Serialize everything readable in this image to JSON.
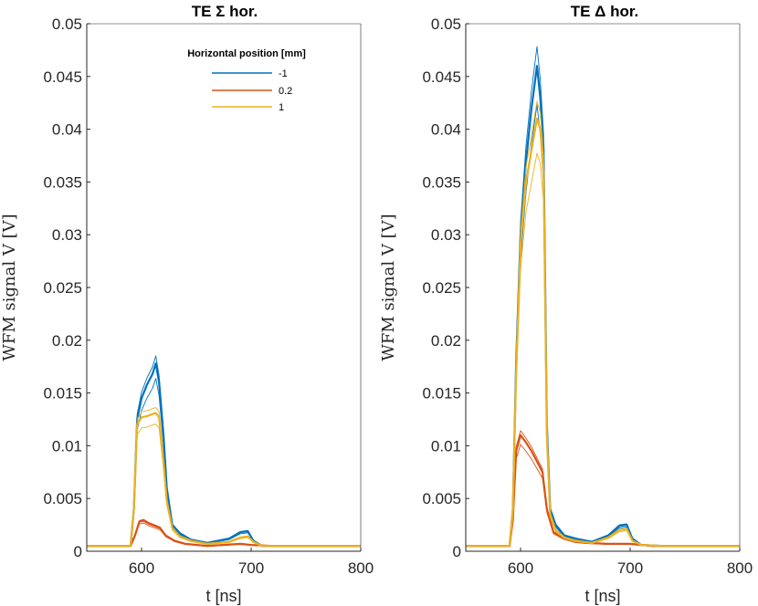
{
  "chart_data": [
    {
      "type": "line",
      "title": "TE Σ hor.",
      "xlabel": "t [ns]",
      "ylabel": "WFM signal V [V]",
      "xlim": [
        550,
        800
      ],
      "ylim": [
        0,
        0.05
      ],
      "xticks": [
        600,
        700,
        800
      ],
      "yticks": [
        0,
        0.005,
        0.01,
        0.015,
        0.02,
        0.025,
        0.03,
        0.035,
        0.04,
        0.045,
        0.05
      ],
      "ytick_labels": [
        "0",
        "0.005",
        "0.01",
        "0.015",
        "0.02",
        "0.025",
        "0.03",
        "0.035",
        "0.04",
        "0.045",
        "0.05"
      ],
      "xtick_labels": [
        "600",
        "700",
        "800"
      ],
      "legend": {
        "title": "Horizontal position [mm]",
        "entries": [
          "-1",
          "0.2",
          "1"
        ]
      },
      "series": [
        {
          "name": "-1",
          "color": "#0072BD",
          "x": [
            550,
            590,
            593,
            596,
            600,
            605,
            610,
            613,
            616,
            620,
            623,
            628,
            635,
            645,
            660,
            680,
            690,
            697,
            702,
            710,
            730,
            800
          ],
          "y": [
            0.0005,
            0.0005,
            0.004,
            0.0125,
            0.0145,
            0.0158,
            0.0168,
            0.0178,
            0.016,
            0.011,
            0.006,
            0.0025,
            0.0017,
            0.0011,
            0.0008,
            0.0012,
            0.0018,
            0.0019,
            0.001,
            0.0005,
            0.0005,
            0.0005
          ]
        },
        {
          "name": "0.2",
          "color": "#D95319",
          "x": [
            550,
            590,
            594,
            598,
            602,
            607,
            612,
            617,
            622,
            630,
            640,
            660,
            690,
            700,
            720,
            800
          ],
          "y": [
            0.0005,
            0.0005,
            0.0015,
            0.0028,
            0.0029,
            0.0026,
            0.0024,
            0.0022,
            0.0015,
            0.001,
            0.0007,
            0.0005,
            0.0007,
            0.0006,
            0.0005,
            0.0005
          ]
        },
        {
          "name": "1",
          "color": "#EDB120",
          "x": [
            550,
            590,
            593,
            596,
            600,
            605,
            610,
            613,
            616,
            620,
            623,
            628,
            635,
            645,
            660,
            680,
            690,
            697,
            702,
            710,
            730,
            800
          ],
          "y": [
            0.0005,
            0.0005,
            0.004,
            0.012,
            0.0127,
            0.0128,
            0.013,
            0.0131,
            0.0127,
            0.0085,
            0.0048,
            0.0022,
            0.0014,
            0.001,
            0.0007,
            0.0009,
            0.0013,
            0.0014,
            0.0009,
            0.0005,
            0.0005,
            0.0005
          ]
        }
      ]
    },
    {
      "type": "line",
      "title": "TE Δ hor.",
      "xlabel": "t [ns]",
      "ylabel": "WFM signal V [V]",
      "xlim": [
        550,
        800
      ],
      "ylim": [
        0,
        0.05
      ],
      "xticks": [
        600,
        700,
        800
      ],
      "yticks": [
        0,
        0.005,
        0.01,
        0.015,
        0.02,
        0.025,
        0.03,
        0.035,
        0.04,
        0.045,
        0.05
      ],
      "ytick_labels": [
        "0",
        "0.005",
        "0.01",
        "0.015",
        "0.02",
        "0.025",
        "0.03",
        "0.035",
        "0.04",
        "0.045",
        "0.05"
      ],
      "xtick_labels": [
        "600",
        "700",
        "800"
      ],
      "series": [
        {
          "name": "-1",
          "color": "#0072BD",
          "x": [
            550,
            590,
            593,
            596,
            600,
            605,
            610,
            615,
            618,
            621,
            624,
            627,
            632,
            640,
            650,
            665,
            680,
            690,
            697,
            702,
            710,
            730,
            800
          ],
          "y": [
            0.0005,
            0.0005,
            0.004,
            0.018,
            0.03,
            0.037,
            0.042,
            0.046,
            0.043,
            0.038,
            0.012,
            0.004,
            0.0025,
            0.0015,
            0.0012,
            0.0009,
            0.0015,
            0.0024,
            0.0025,
            0.0012,
            0.0006,
            0.0005,
            0.0005
          ]
        },
        {
          "name": "0.2",
          "color": "#D95319",
          "x": [
            550,
            590,
            593,
            596,
            600,
            605,
            610,
            615,
            620,
            624,
            630,
            640,
            650,
            660,
            680,
            700,
            720,
            800
          ],
          "y": [
            0.0005,
            0.0005,
            0.003,
            0.0095,
            0.011,
            0.0103,
            0.0095,
            0.0085,
            0.0075,
            0.004,
            0.0018,
            0.0012,
            0.0009,
            0.0008,
            0.0007,
            0.0007,
            0.0005,
            0.0005
          ]
        },
        {
          "name": "1",
          "color": "#EDB120",
          "x": [
            550,
            590,
            593,
            596,
            600,
            605,
            610,
            615,
            618,
            621,
            624,
            627,
            632,
            640,
            650,
            665,
            680,
            690,
            697,
            702,
            710,
            730,
            800
          ],
          "y": [
            0.0005,
            0.0005,
            0.004,
            0.017,
            0.029,
            0.035,
            0.038,
            0.041,
            0.04,
            0.036,
            0.011,
            0.0035,
            0.002,
            0.0013,
            0.001,
            0.0008,
            0.0013,
            0.002,
            0.0021,
            0.001,
            0.0006,
            0.0005,
            0.0005
          ]
        }
      ]
    }
  ]
}
